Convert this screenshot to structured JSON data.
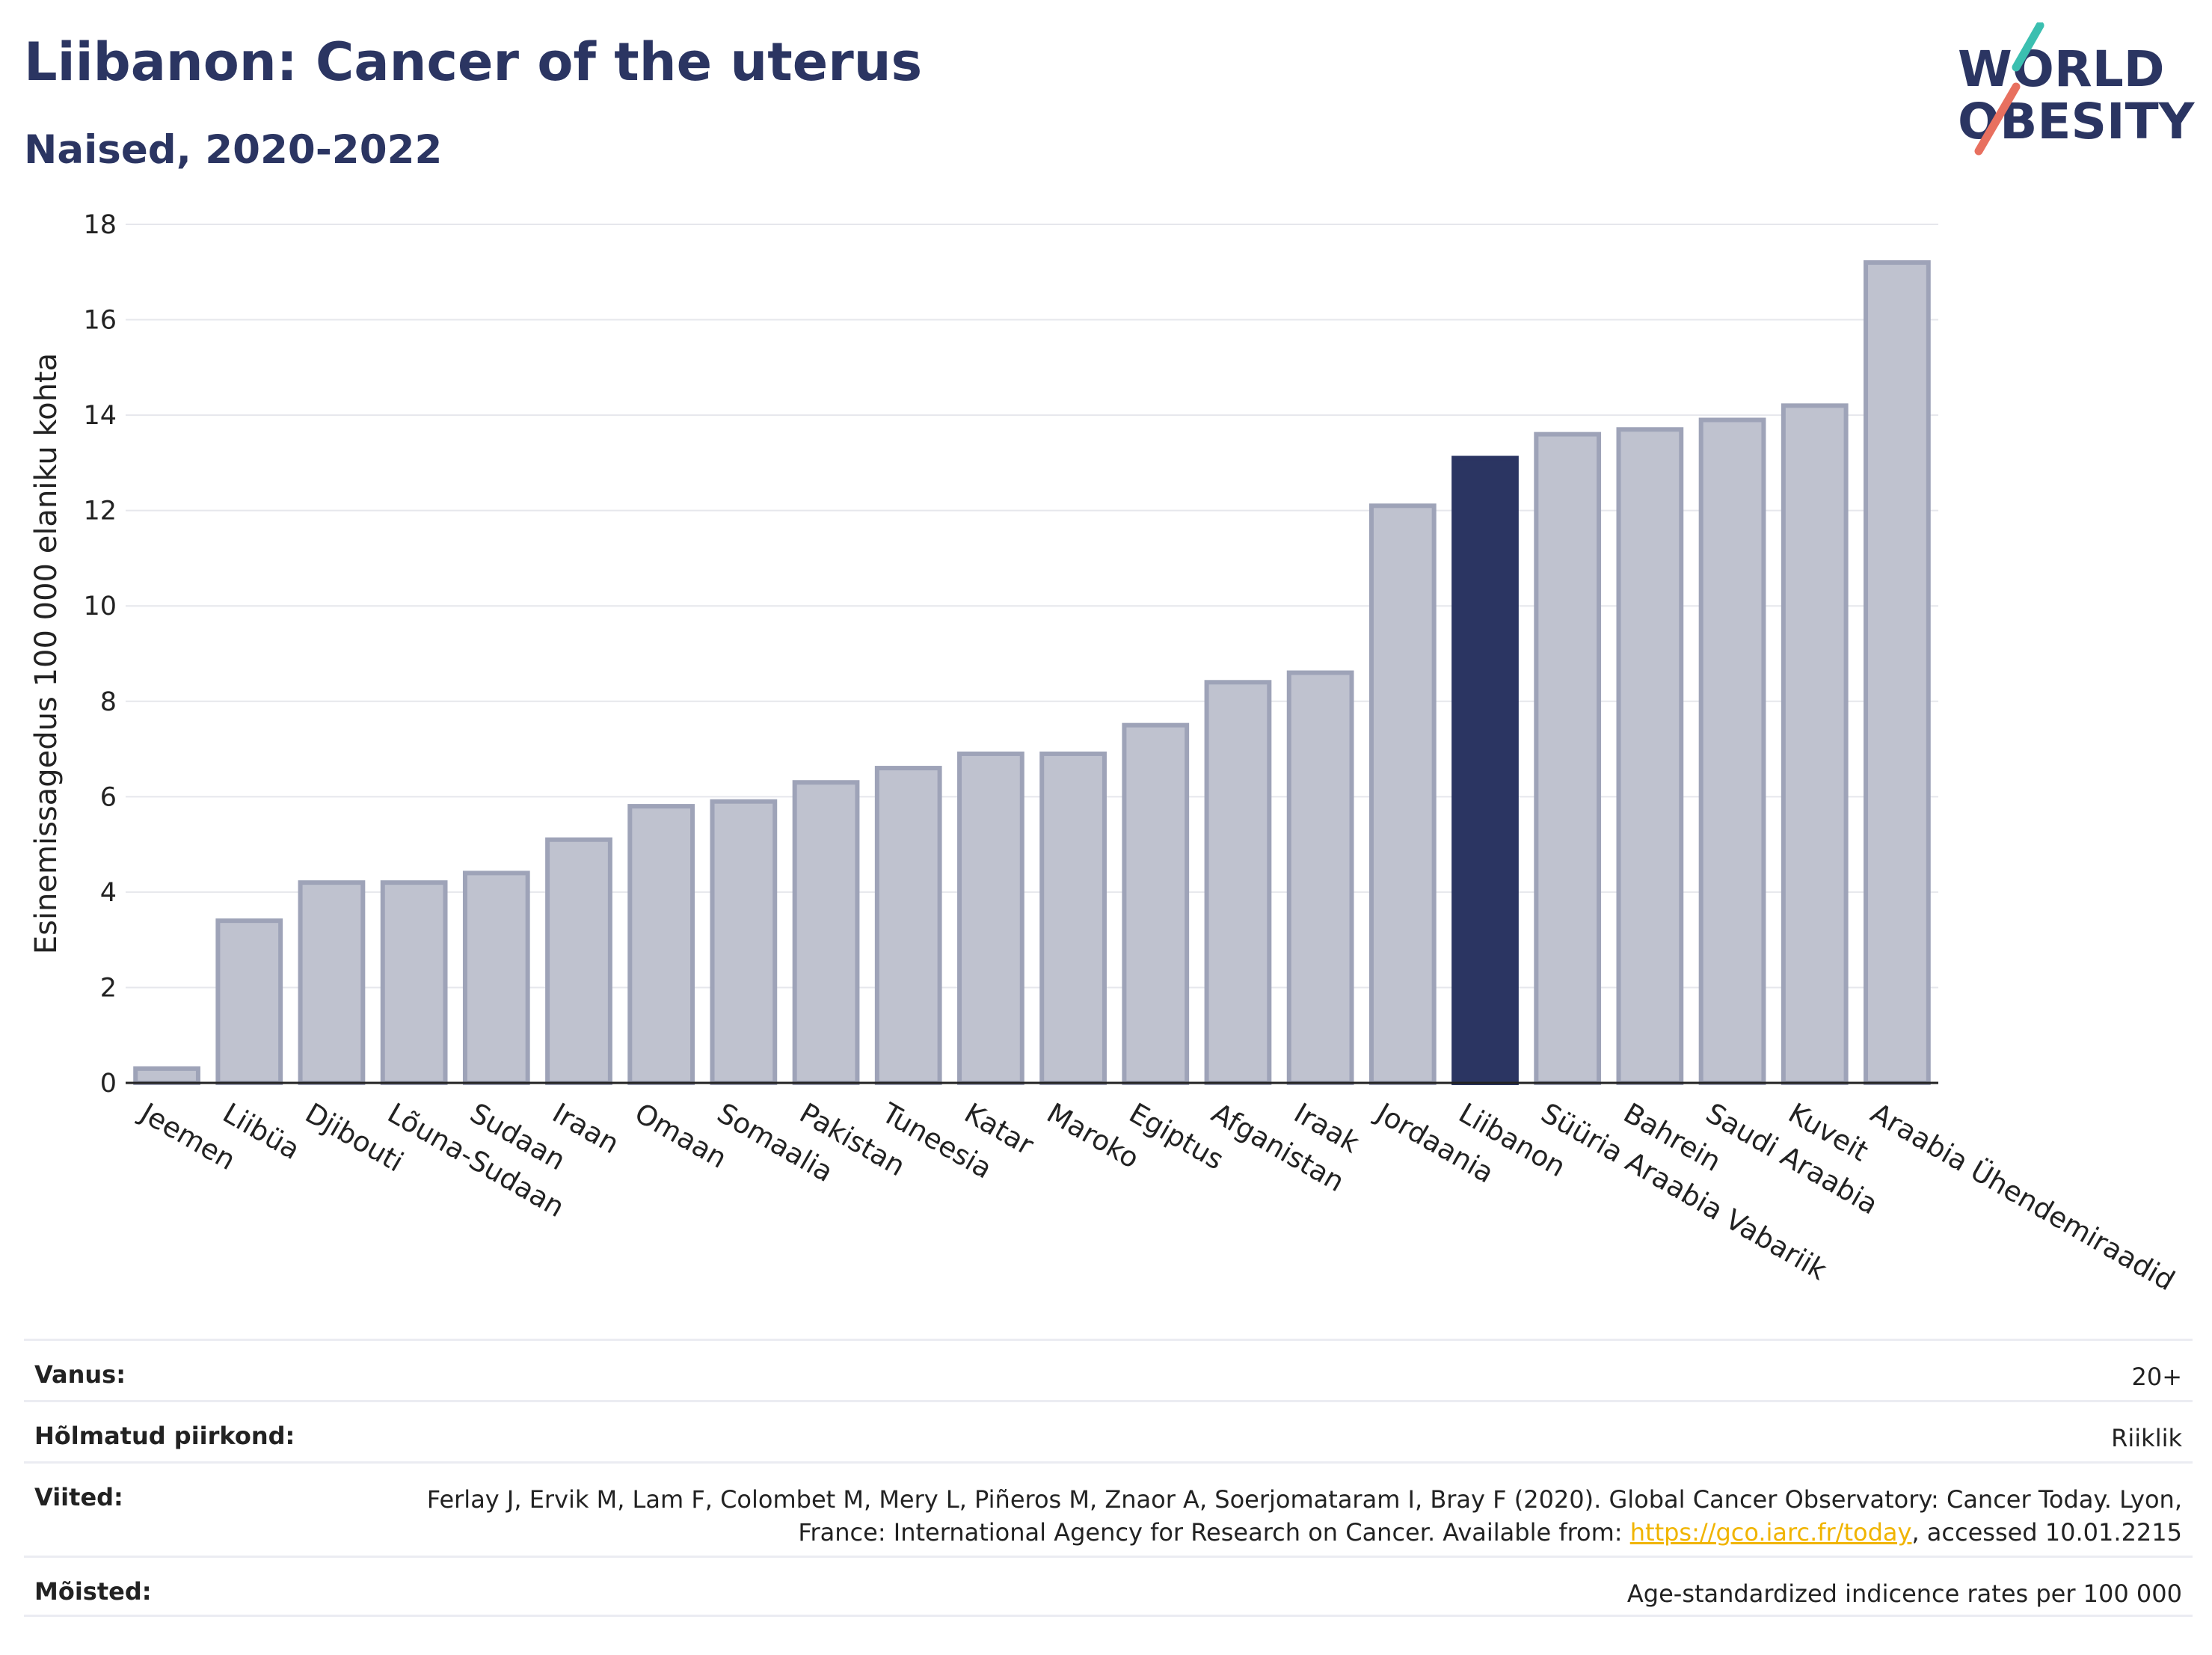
{
  "header": {
    "title": "Liibanon: Cancer of the uterus",
    "subtitle": "Naised, 2020-2022"
  },
  "logo": {
    "line1": "WORLD",
    "line2": "OBESITY",
    "accent_teal": "#3bbfb0",
    "accent_coral": "#e8705f"
  },
  "chart_data": {
    "type": "bar",
    "title": "Liibanon: Cancer of the uterus",
    "subtitle": "Naised, 2020-2022",
    "xlabel": "",
    "ylabel": "Esinemissagedus 100 000 elaniku kohta",
    "ylim": [
      0,
      18
    ],
    "yticks": [
      0,
      2,
      4,
      6,
      8,
      10,
      12,
      14,
      16,
      18
    ],
    "grid": true,
    "highlight": "Liibanon",
    "colors": {
      "bar": "#bfc2cf",
      "bar_border": "#9ea3b8",
      "highlight": "#2b3562"
    },
    "categories": [
      "Jeemen",
      "Liibüa",
      "Djibouti",
      "Lõuna-Sudaan",
      "Sudaan",
      "Iraan",
      "Omaan",
      "Somaalia",
      "Pakistan",
      "Tuneesia",
      "Katar",
      "Maroko",
      "Egiptus",
      "Afganistan",
      "Iraak",
      "Jordaania",
      "Liibanon",
      "Süüria Araabia Vabariik",
      "Bahrein",
      "Saudi Araabia",
      "Kuveit",
      "Araabia Ühendemiraadid"
    ],
    "values": [
      0.3,
      3.4,
      4.2,
      4.2,
      4.4,
      5.1,
      5.8,
      5.9,
      6.3,
      6.6,
      6.9,
      6.9,
      7.5,
      8.4,
      8.6,
      12.1,
      13.1,
      13.6,
      13.7,
      13.9,
      14.2,
      17.2
    ]
  },
  "info": {
    "age_label": "Vanus:",
    "age_value": "20+",
    "region_label": "Hõlmatud piirkond:",
    "region_value": "Riiklik",
    "refs_label": "Viited:",
    "refs_text_1": "Ferlay J, Ervik M, Lam F, Colombet M, Mery L, Piñeros M, Znaor A, Soerjomataram I, Bray F (2020). Global Cancer Observatory: Cancer Today. Lyon, France: International Agency for Research on Cancer. Available from: ",
    "refs_link": "https://gco.iarc.fr/today",
    "refs_text_2": ", accessed 10.01.2215",
    "defs_label": "Mõisted:",
    "defs_value": "Age-standardized indicence rates per 100 000"
  }
}
